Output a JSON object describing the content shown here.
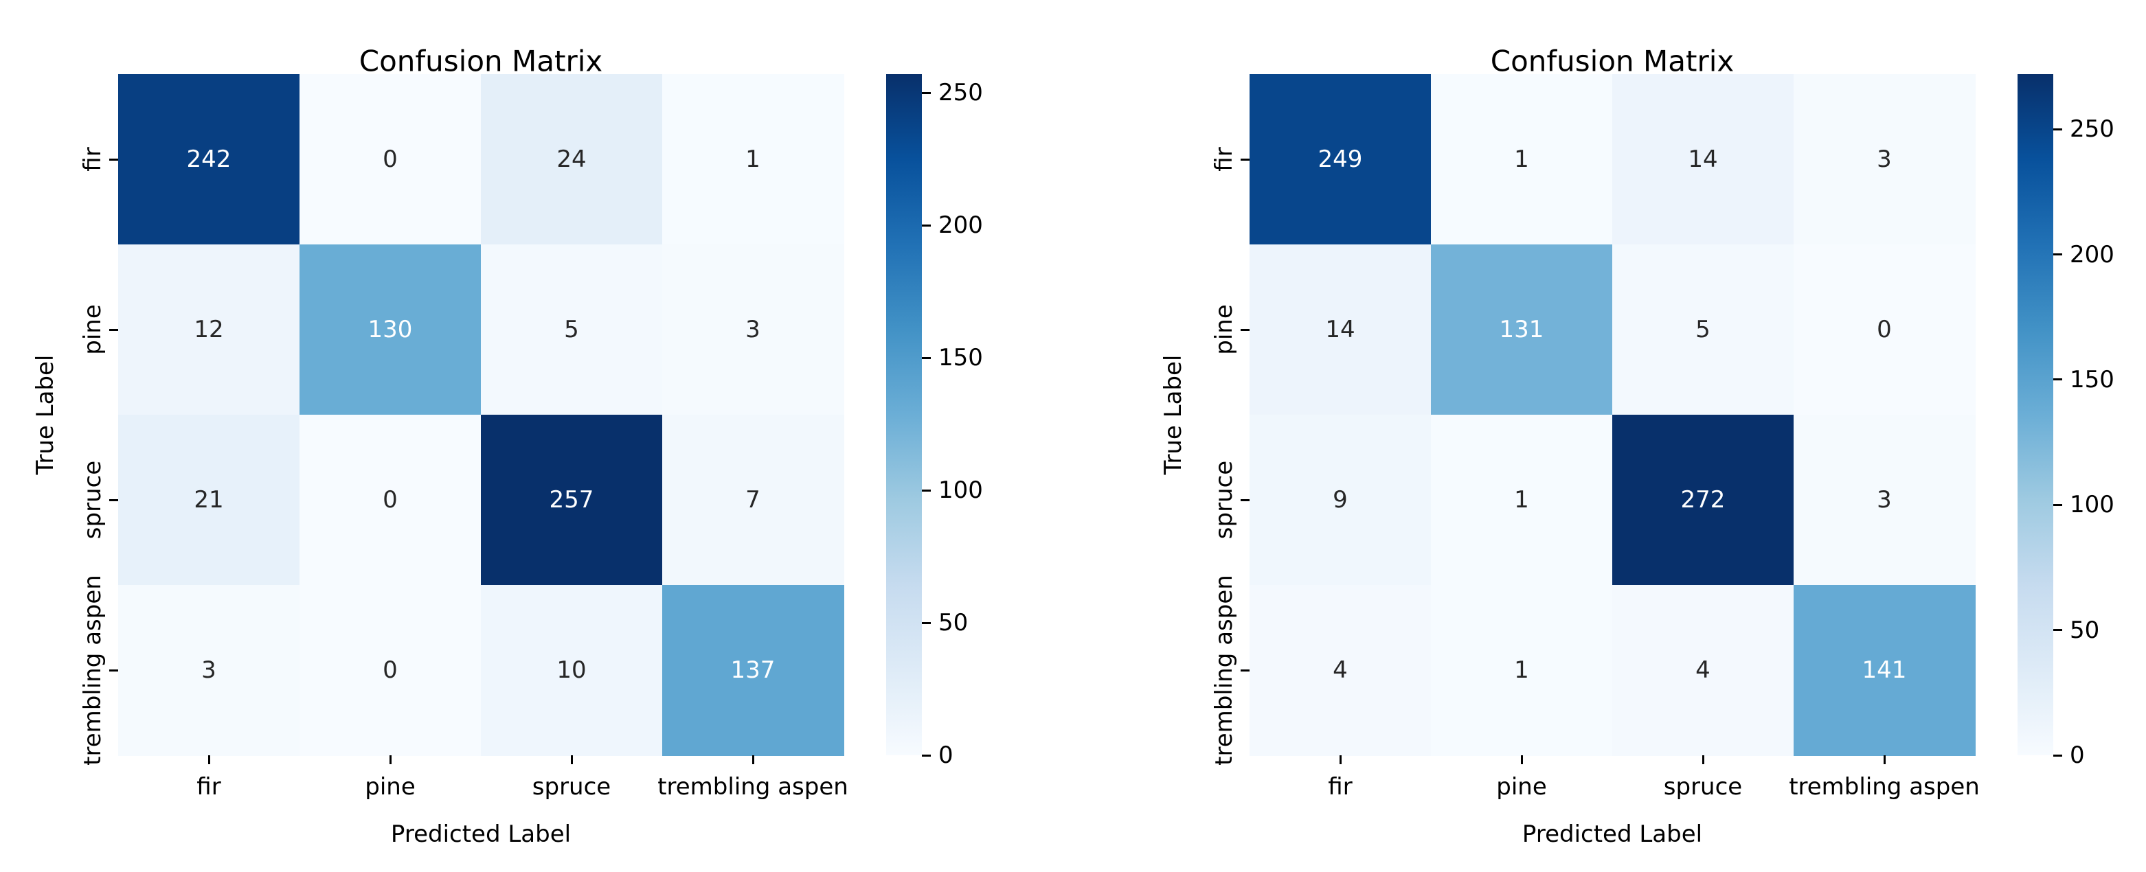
{
  "chart_data": [
    {
      "type": "heatmap",
      "title": "Confusion Matrix",
      "xlabel": "Predicted Label",
      "ylabel": "True Label",
      "x_categories": [
        "fir",
        "pine",
        "spruce",
        "trembling aspen"
      ],
      "y_categories": [
        "fir",
        "pine",
        "spruce",
        "trembling aspen"
      ],
      "rows": [
        [
          242,
          0,
          24,
          1
        ],
        [
          12,
          130,
          5,
          3
        ],
        [
          21,
          0,
          257,
          7
        ],
        [
          3,
          0,
          10,
          137
        ]
      ],
      "vmin": 0,
      "vmax": 257,
      "colormap": "Blues",
      "colorbar_ticks": [
        0,
        50,
        100,
        150,
        200,
        250
      ],
      "colorbar_position": "right",
      "grid": false
    },
    {
      "type": "heatmap",
      "title": "Confusion Matrix",
      "xlabel": "Predicted Label",
      "ylabel": "True Label",
      "x_categories": [
        "fir",
        "pine",
        "spruce",
        "trembling aspen"
      ],
      "y_categories": [
        "fir",
        "pine",
        "spruce",
        "trembling aspen"
      ],
      "rows": [
        [
          249,
          1,
          14,
          3
        ],
        [
          14,
          131,
          5,
          0
        ],
        [
          9,
          1,
          272,
          3
        ],
        [
          4,
          1,
          4,
          141
        ]
      ],
      "vmin": 0,
      "vmax": 272,
      "colormap": "Blues",
      "colorbar_ticks": [
        0,
        50,
        100,
        150,
        200,
        250
      ],
      "colorbar_position": "right",
      "grid": false
    }
  ],
  "colors": {
    "background": "#ffffff",
    "text": "#000000",
    "annotation_dark": "#262626",
    "annotation_light": "#ffffff",
    "colormap_blues_anchors": [
      "#f7fbff",
      "#deebf7",
      "#c6dbef",
      "#9ecae1",
      "#6baed6",
      "#4292c6",
      "#2171b5",
      "#08519c",
      "#08306b"
    ]
  }
}
